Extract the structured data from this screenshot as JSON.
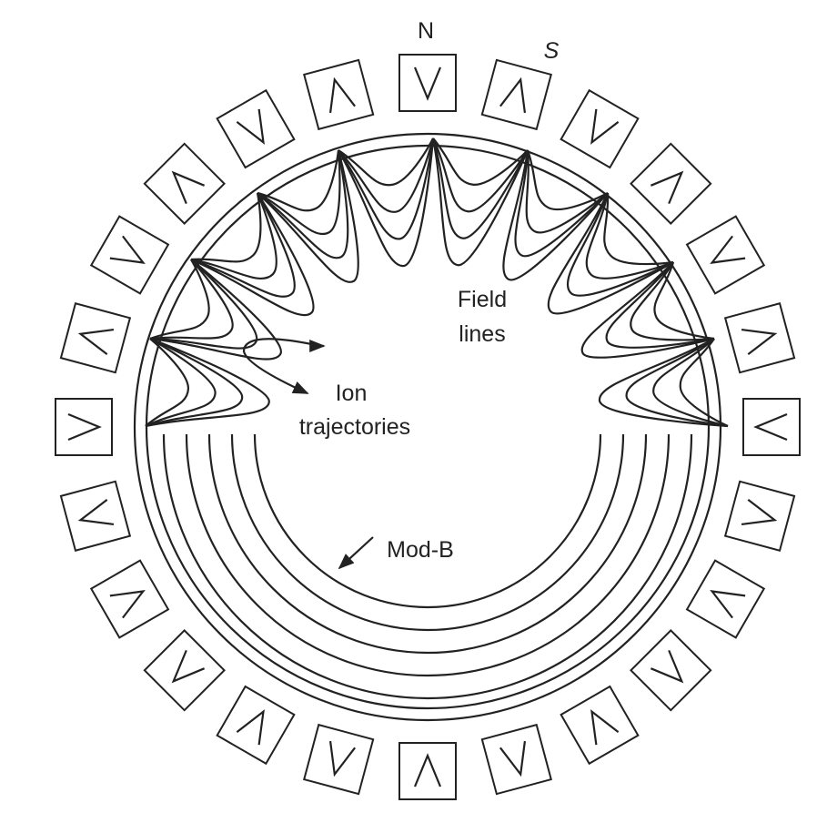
{
  "labels": {
    "north": "N",
    "south": "S",
    "field_lines": [
      "Field",
      "lines"
    ],
    "ion_trajectories": [
      "Ion",
      "trajectories"
    ],
    "mod_b": "Mod-B"
  }
}
